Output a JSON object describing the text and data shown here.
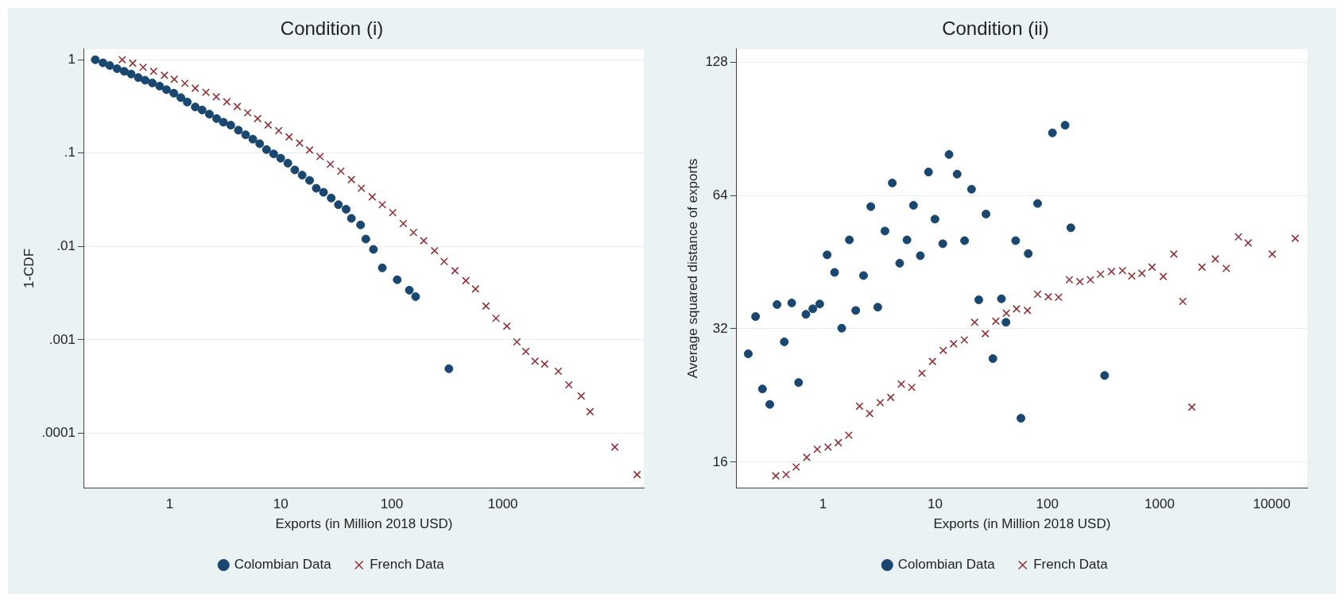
{
  "chart_data": [
    {
      "type": "scatter",
      "title": "Condition (i)",
      "xlabel": "Exports (in Million 2018 USD)",
      "ylabel": "1-CDF",
      "log": "xy",
      "grid": "y",
      "legend": "bottom",
      "xlim": [
        0.17,
        18600
      ],
      "ylim": [
        2.6e-05,
        1.3
      ],
      "xticks": [
        1,
        10,
        100,
        1000
      ],
      "yticks": [
        {
          "value": 1,
          "label": "1"
        },
        {
          "value": 0.1,
          "label": ".1"
        },
        {
          "value": 0.01,
          "label": ".01"
        },
        {
          "value": 0.001,
          "label": ".001"
        },
        {
          "value": 0.0001,
          "label": ".0001"
        }
      ],
      "series": [
        {
          "name": "Colombian Data",
          "color": "#1a476f",
          "marker": "circle",
          "x": [
            0.214,
            0.251,
            0.289,
            0.336,
            0.39,
            0.45,
            0.522,
            0.601,
            0.698,
            0.812,
            0.936,
            1.09,
            1.26,
            1.44,
            1.7,
            1.96,
            2.28,
            2.65,
            3.05,
            3.55,
            4.16,
            4.83,
            5.61,
            6.47,
            7.45,
            8.65,
            10,
            11.6,
            13.4,
            15.6,
            18.2,
            20.9,
            24.3,
            28.5,
            33.1,
            38.8,
            43.3,
            52.4,
            58.4,
            68.4,
            82.2,
            112,
            144,
            164,
            327
          ],
          "values": [
            1,
            0.926,
            0.867,
            0.802,
            0.751,
            0.703,
            0.644,
            0.603,
            0.564,
            0.522,
            0.478,
            0.438,
            0.393,
            0.352,
            0.312,
            0.289,
            0.261,
            0.234,
            0.214,
            0.199,
            0.176,
            0.157,
            0.141,
            0.126,
            0.109,
            0.098,
            0.088,
            0.078,
            0.066,
            0.058,
            0.051,
            0.042,
            0.038,
            0.033,
            0.028,
            0.025,
            0.02,
            0.017,
            0.012,
            0.0093,
            0.0059,
            0.0044,
            0.0034,
            0.0029,
            0.00049
          ]
        },
        {
          "name": "French Data",
          "color": "#90353b",
          "marker": "cross",
          "x": [
            0.374,
            0.465,
            0.577,
            0.717,
            0.897,
            1.1,
            1.37,
            1.7,
            2.12,
            2.63,
            3.27,
            4.06,
            5.04,
            6.2,
            7.71,
            9.58,
            11.9,
            14.8,
            18.2,
            22.6,
            28,
            34.8,
            43.3,
            53.3,
            66.7,
            82.2,
            102,
            127,
            157,
            194,
            243,
            296,
            371,
            465,
            568,
            705,
            868,
            1088,
            1340,
            1610,
            1950,
            2380,
            3160,
            3930,
            5080,
            6110,
            10200,
            16200
          ],
          "values": [
            1,
            0.916,
            0.829,
            0.751,
            0.68,
            0.616,
            0.558,
            0.495,
            0.448,
            0.401,
            0.355,
            0.315,
            0.27,
            0.234,
            0.2,
            0.174,
            0.149,
            0.128,
            0.108,
            0.092,
            0.076,
            0.064,
            0.052,
            0.042,
            0.034,
            0.028,
            0.023,
            0.0176,
            0.0141,
            0.0115,
            0.009,
            0.0069,
            0.0055,
            0.0043,
            0.0035,
            0.0023,
            0.0017,
            0.0014,
            0.00095,
            0.00075,
            0.00059,
            0.00055,
            0.00046,
            0.00033,
            0.00025,
            0.00017,
            7.1e-05,
            3.6e-05
          ]
        }
      ]
    },
    {
      "type": "scatter",
      "title": "Condition (ii)",
      "xlabel": "Exports (in Million 2018 USD)",
      "ylabel": "Average squared distance of exports",
      "log": "xy",
      "grid": "y",
      "legend": "bottom",
      "xlim": [
        0.17,
        20800
      ],
      "ylim": [
        14,
        137
      ],
      "xticks": [
        1,
        10,
        100,
        1000,
        10000
      ],
      "yticks": [
        16,
        32,
        64,
        128
      ],
      "series": [
        {
          "name": "Colombian Data",
          "color": "#1a476f",
          "marker": "circle",
          "x": [
            0.216,
            0.251,
            0.289,
            0.336,
            0.39,
            0.453,
            0.527,
            0.607,
            0.705,
            0.812,
            0.936,
            1.09,
            1.27,
            1.47,
            1.72,
            1.96,
            2.3,
            2.67,
            3.08,
            3.57,
            4.15,
            4.83,
            5.61,
            6.41,
            7.38,
            8.72,
            9.96,
            11.7,
            13.3,
            15.7,
            18.3,
            21.1,
            24.5,
            28.4,
            32.7,
            39,
            42.8,
            52.2,
            58.2,
            67.6,
            81.9,
            111,
            144,
            162,
            324
          ],
          "values": [
            28.1,
            34.1,
            23.4,
            21.6,
            36.3,
            29.9,
            36.6,
            24.2,
            34.5,
            35.5,
            36.4,
            47,
            42.9,
            32.1,
            50.8,
            35.2,
            42.2,
            60.4,
            35.8,
            53.2,
            68.3,
            45,
            50.8,
            60.8,
            46.8,
            72.3,
            56.6,
            49.8,
            79.2,
            71.5,
            50.6,
            66.1,
            37.2,
            58.1,
            27.4,
            37.4,
            33.1,
            50.6,
            20.1,
            47.3,
            61.4,
            88.6,
            92.2,
            54.1,
            25.1
          ]
        },
        {
          "name": "French Data",
          "color": "#90353b",
          "marker": "cross",
          "x": [
            0.38,
            0.469,
            0.577,
            0.717,
            0.89,
            1.11,
            1.37,
            1.7,
            2.12,
            2.61,
            3.24,
            4.02,
            4.99,
            6.19,
            7.63,
            9.47,
            11.8,
            14.6,
            18.2,
            22.5,
            28,
            34.7,
            43.1,
            53.1,
            66.5,
            81.9,
            102,
            126,
            157,
            195,
            242,
            298,
            373,
            467,
            565,
            696,
            858,
            1080,
            1340,
            1610,
            1940,
            2390,
            3140,
            3930,
            5050,
            6170,
            10100,
            16200
          ],
          "values": [
            14.9,
            15,
            15.6,
            16.4,
            17.1,
            17.3,
            17.7,
            18.4,
            21.4,
            20.6,
            21.8,
            22.4,
            24,
            23.6,
            25.4,
            27,
            28.6,
            29.6,
            30.2,
            33.1,
            31.2,
            33.3,
            34.7,
            35.5,
            35.2,
            38.3,
            37.8,
            37.7,
            41.3,
            40.9,
            41.3,
            42.5,
            43.1,
            43.3,
            42.1,
            42.7,
            44.1,
            42,
            47.2,
            36.9,
            21.3,
            44.1,
            46,
            43.8,
            51.6,
            50,
            47.2,
            51.2
          ]
        }
      ]
    }
  ]
}
